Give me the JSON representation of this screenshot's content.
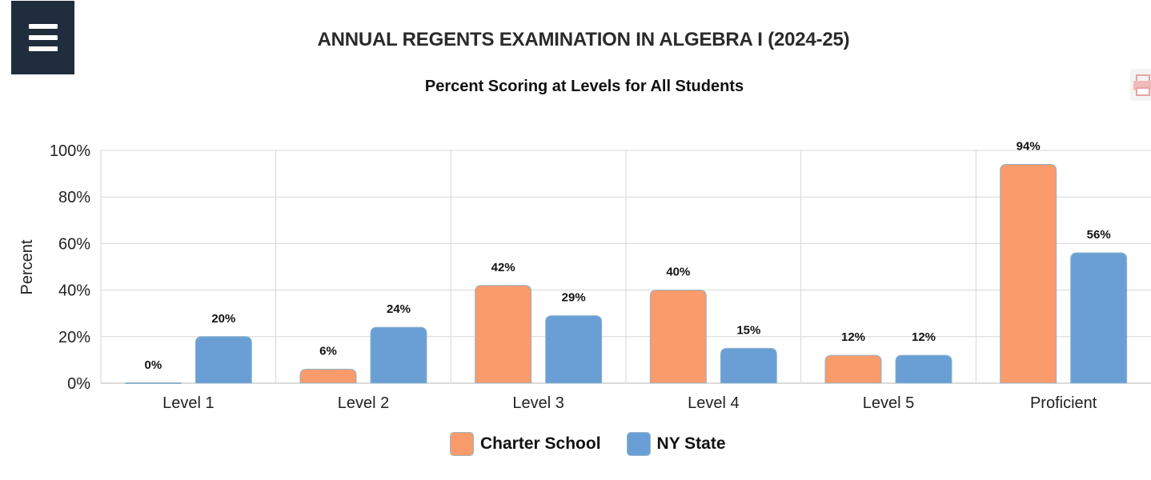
{
  "menu": {
    "icon": "hamburger-menu-icon"
  },
  "print": {
    "icon": "print-icon"
  },
  "colors": {
    "charter": "#f99b6a",
    "state": "#699fd4",
    "grid": "#d7d7d7",
    "menu_bg": "#1f2d3d"
  },
  "chart_data": {
    "type": "bar",
    "title": "ANNUAL REGENTS EXAMINATION IN ALGEBRA I (2024-25)",
    "subtitle": "Percent Scoring at Levels for All Students",
    "ylabel": "Percent",
    "xlabel": "",
    "ylim": [
      0,
      100
    ],
    "yticks": [
      0,
      20,
      40,
      60,
      80,
      100
    ],
    "ytick_labels": [
      "0%",
      "20%",
      "40%",
      "60%",
      "80%",
      "100%"
    ],
    "categories": [
      "Level 1",
      "Level 2",
      "Level 3",
      "Level 4",
      "Level 5",
      "Proficient"
    ],
    "series": [
      {
        "name": "Charter School",
        "color": "#f99b6a",
        "values": [
          0,
          6,
          42,
          40,
          12,
          94
        ],
        "labels": [
          "0%",
          "6%",
          "42%",
          "40%",
          "12%",
          "94%"
        ]
      },
      {
        "name": "NY State",
        "color": "#699fd4",
        "values": [
          20,
          24,
          29,
          15,
          12,
          56
        ],
        "labels": [
          "20%",
          "24%",
          "29%",
          "15%",
          "12%",
          "56%"
        ]
      }
    ],
    "grid": true,
    "legend_position": "bottom-center"
  }
}
